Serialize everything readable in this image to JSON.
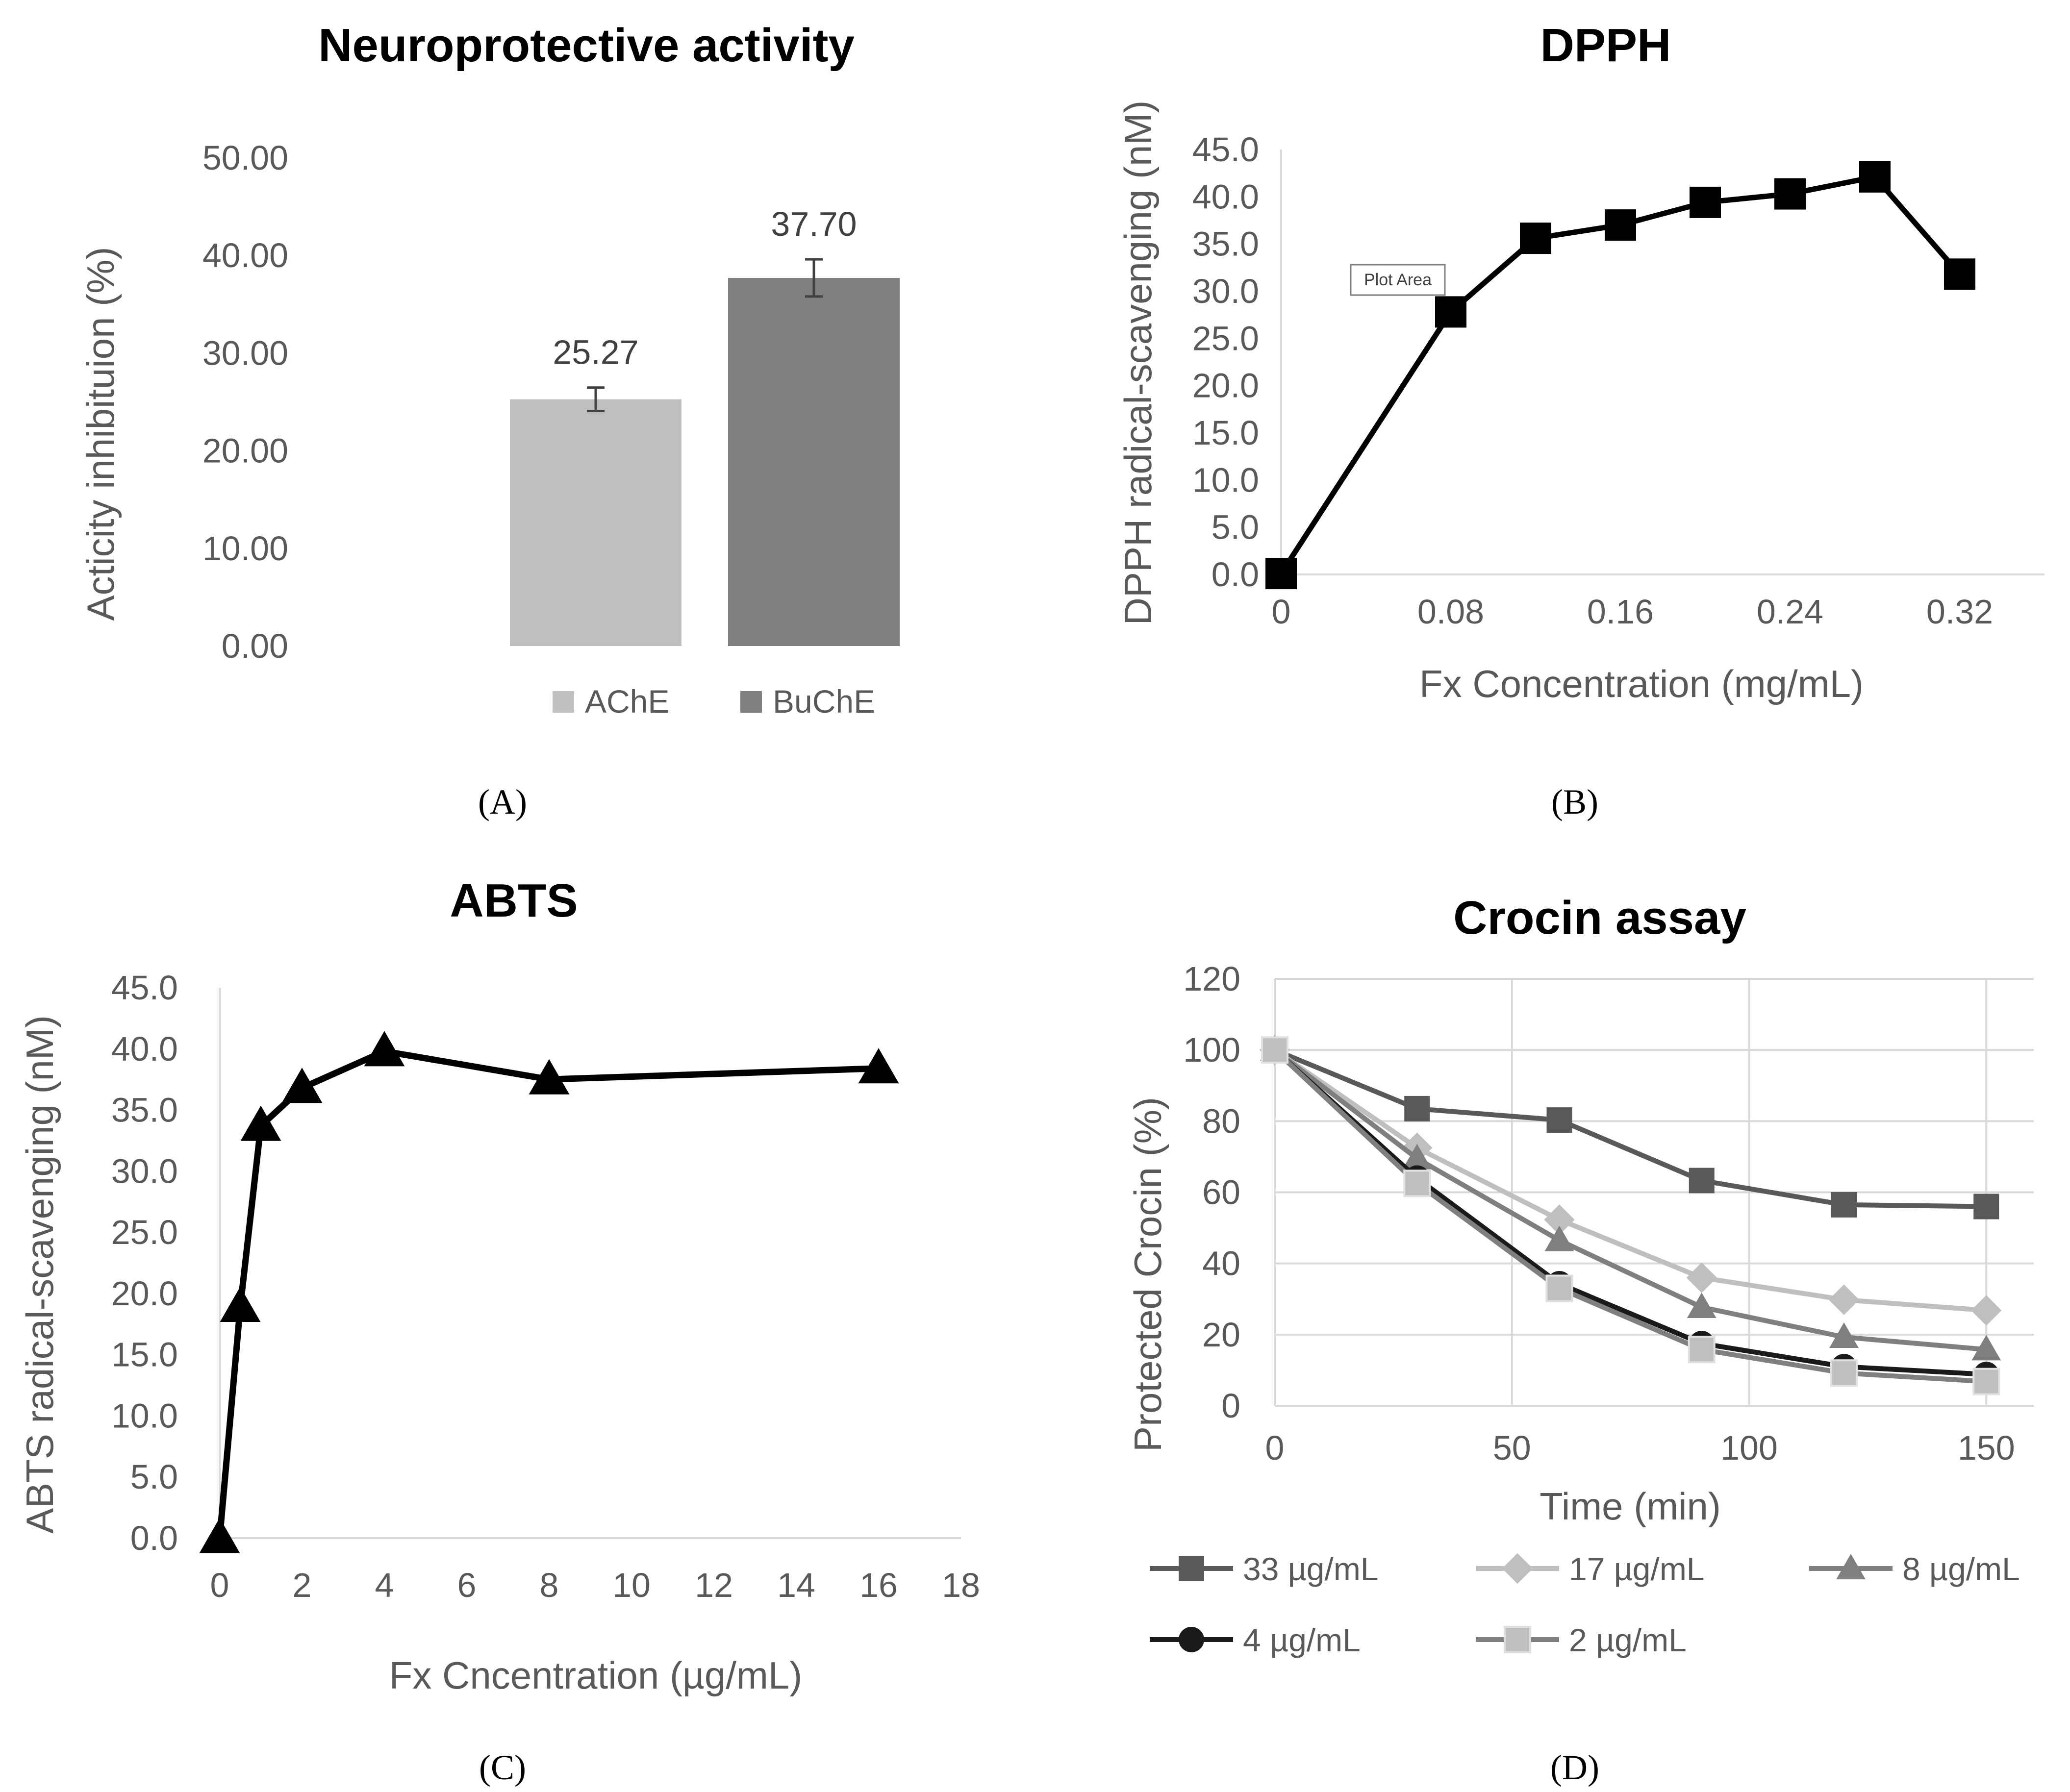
{
  "chart_data": [
    {
      "id": "A",
      "type": "bar",
      "title": "Neuroprotective activity",
      "ylabel": "Acticity inhibituion (%)",
      "xlabel": "",
      "ylim": [
        0,
        50
      ],
      "yticks": [
        "0.00",
        "10.00",
        "20.00",
        "30.00",
        "40.00",
        "50.00"
      ],
      "categories": [
        "AChE",
        "BuChE"
      ],
      "values": [
        25.27,
        37.7
      ],
      "value_labels": [
        "25.27",
        "37.70"
      ],
      "error": [
        1.2,
        1.9
      ],
      "colors": [
        "#bfbfbf",
        "#7f7f7f"
      ],
      "legend": [
        "AChE",
        "BuChE"
      ],
      "legend_position": "bottom",
      "grid": false
    },
    {
      "id": "B",
      "type": "line",
      "title": "DPPH",
      "xlabel": "Fx Concentration (mg/mL)",
      "ylabel": "DPPH radical-scavenging (nM)",
      "xlim": [
        0,
        0.36
      ],
      "ylim": [
        0,
        45
      ],
      "xticks": [
        "0",
        "0.08",
        "0.16",
        "0.24",
        "0.32"
      ],
      "yticks": [
        "0.0",
        "5.0",
        "10.0",
        "15.0",
        "20.0",
        "25.0",
        "30.0",
        "35.0",
        "40.0",
        "45.0"
      ],
      "x": [
        0,
        0.08,
        0.12,
        0.16,
        0.2,
        0.24,
        0.28,
        0.32
      ],
      "y": [
        0.1,
        27.8,
        35.6,
        37.0,
        39.4,
        40.3,
        42.1,
        31.8
      ],
      "marker": "square",
      "color": "#000000",
      "tooltip": "Plot Area",
      "grid": false
    },
    {
      "id": "C",
      "type": "line",
      "title": "ABTS",
      "xlabel": "Fx Cncentration (µg/mL)",
      "ylabel": "ABTS radical-scavenging (nM)",
      "xlim": [
        0,
        18
      ],
      "ylim": [
        0,
        45
      ],
      "xticks": [
        "0",
        "2",
        "4",
        "6",
        "8",
        "10",
        "12",
        "14",
        "16",
        "18"
      ],
      "yticks": [
        "0.0",
        "5.0",
        "10.0",
        "15.0",
        "20.0",
        "25.0",
        "30.0",
        "35.0",
        "40.0",
        "45.0"
      ],
      "x": [
        0,
        0.5,
        1,
        2,
        4,
        8,
        16
      ],
      "y": [
        0.0,
        18.9,
        33.7,
        36.8,
        39.8,
        37.5,
        38.4
      ],
      "marker": "triangle",
      "color": "#000000",
      "grid": false
    },
    {
      "id": "D",
      "type": "line",
      "title": "Crocin assay",
      "xlabel": "Time (min)",
      "ylabel": "Protected Crocin (%)",
      "xlim": [
        0,
        160
      ],
      "ylim": [
        0,
        120
      ],
      "xticks": [
        "0",
        "50",
        "100",
        "150"
      ],
      "yticks": [
        "0",
        "20",
        "40",
        "60",
        "80",
        "100",
        "120"
      ],
      "x": [
        0,
        30,
        60,
        90,
        120,
        150
      ],
      "grid": true,
      "legend_position": "bottom",
      "series": [
        {
          "name": "33 µg/mL",
          "values": [
            100,
            83.5,
            80.3,
            63.3,
            56.5,
            56.0
          ],
          "color": "#595959",
          "marker": "square"
        },
        {
          "name": "17 µg/mL",
          "values": [
            100,
            72.5,
            52.3,
            36.0,
            29.8,
            26.8
          ],
          "color": "#bfbfbf",
          "marker": "diamond"
        },
        {
          "name": "8 µg/mL",
          "values": [
            100,
            69.5,
            46.5,
            27.7,
            19.3,
            15.8
          ],
          "color": "#7f7f7f",
          "marker": "triangle"
        },
        {
          "name": "4 µg/mL",
          "values": [
            100,
            64.0,
            34.3,
            17.5,
            11.0,
            8.8
          ],
          "color": "#1a1a1a",
          "marker": "circle"
        },
        {
          "name": "2 µg/mL",
          "values": [
            100,
            62.5,
            33.0,
            15.8,
            9.2,
            6.8
          ],
          "color": "#7f7f7f",
          "marker": "square-light"
        }
      ]
    }
  ],
  "panel_labels": [
    "(A)",
    "(B)",
    "(C)",
    "(D)"
  ]
}
